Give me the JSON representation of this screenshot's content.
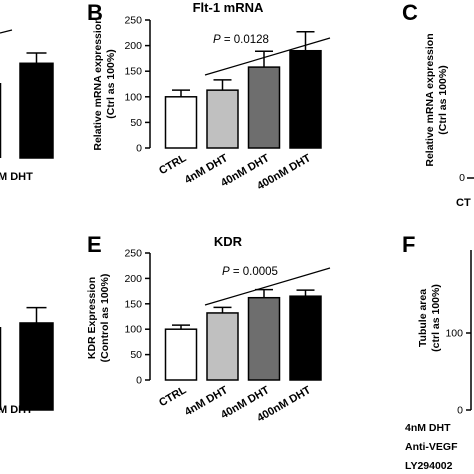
{
  "panels": {
    "a_fragment": {
      "category_label": "M DHT"
    },
    "b": {
      "letter": "B"
    },
    "c_fragment": {
      "letter": "C",
      "ylabel_line1": "Relative mRNA expression",
      "ylabel_line2": "(Ctrl as 100%)",
      "tick_0": "0",
      "category_label": "CT"
    },
    "d_fragment": {
      "category_label": "M DHT"
    },
    "e": {
      "letter": "E"
    },
    "f_fragment": {
      "letter": "F",
      "ylabel_line1": "Tubule area",
      "ylabel_line2": "(ctrl as 100%)",
      "ticks": [
        "100",
        "0"
      ],
      "row_labels": [
        "4nM DHT",
        "Anti-VEGF",
        "LY294002"
      ]
    }
  },
  "chart_data": [
    {
      "panel": "B",
      "type": "bar",
      "title": "Flt-1 mRNA",
      "ylabel_line1": "Relative mRNA expression",
      "ylabel_line2": "(Ctrl as 100%)",
      "categories": [
        "CTRL",
        "4nM DHT",
        "40nM DHT",
        "400nM DHT"
      ],
      "values": [
        100,
        113,
        158,
        190
      ],
      "errors": [
        13,
        20,
        31,
        37
      ],
      "bar_colors": [
        "#ffffff",
        "#c0c0c0",
        "#6e6e6e",
        "#000000"
      ],
      "ylim": [
        0,
        250
      ],
      "yticks": [
        0,
        50,
        100,
        150,
        200,
        250
      ],
      "annotation": "P = 0.0128",
      "trend_line": true
    },
    {
      "panel": "E",
      "type": "bar",
      "title": "KDR",
      "ylabel_line1": "KDR Expression",
      "ylabel_line2": "(Control as 100%)",
      "categories": [
        "CTRL",
        "4nM DHT",
        "40nM DHT",
        "400nM DHT"
      ],
      "values": [
        100,
        132,
        162,
        165
      ],
      "errors": [
        8,
        11,
        16,
        12
      ],
      "bar_colors": [
        "#ffffff",
        "#c0c0c0",
        "#6e6e6e",
        "#000000"
      ],
      "ylim": [
        0,
        250
      ],
      "yticks": [
        0,
        50,
        100,
        150,
        200,
        250
      ],
      "annotation": "P = 0.0005",
      "trend_line": true
    },
    {
      "panel": "A (partial)",
      "type": "bar",
      "categories": [
        "M DHT"
      ],
      "values": [
        185
      ],
      "errors": [
        20
      ],
      "bar_colors": [
        "#000000"
      ]
    },
    {
      "panel": "D (partial)",
      "type": "bar",
      "categories": [
        "M DHT"
      ],
      "values": [
        170
      ],
      "errors": [
        30
      ],
      "bar_colors": [
        "#000000"
      ]
    }
  ]
}
